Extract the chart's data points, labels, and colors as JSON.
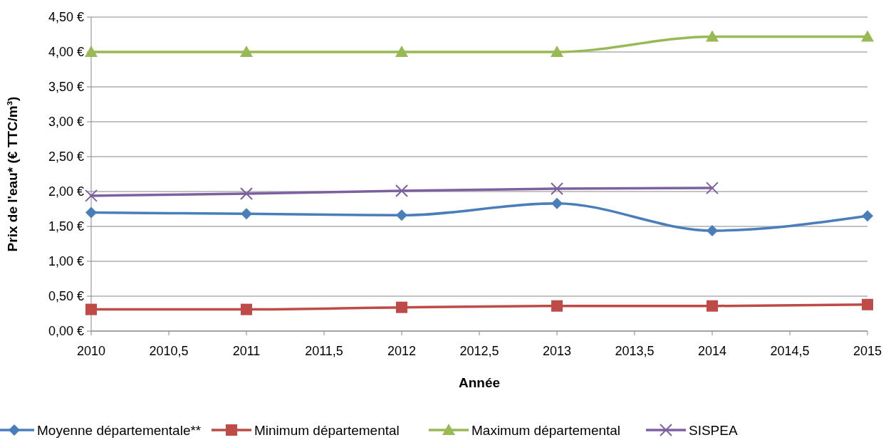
{
  "chart_data": {
    "type": "line",
    "xlabel": "Année",
    "ylabel": "Prix de l'eau* (€ TTC/m³)",
    "x": [
      2010,
      2011,
      2012,
      2013,
      2014,
      2015
    ],
    "xlim": [
      2010,
      2015
    ],
    "xticks": [
      2010,
      {
        "value": 2010.5,
        "label": "2010,5"
      },
      2011,
      {
        "value": 2011.5,
        "label": "2011,5"
      },
      2012,
      {
        "value": 2012.5,
        "label": "2012,5"
      },
      2013,
      {
        "value": 2013.5,
        "label": "2013,5"
      },
      2014,
      {
        "value": 2014.5,
        "label": "2014,5"
      },
      2015
    ],
    "ylim": [
      0,
      4.5
    ],
    "yticks": [
      {
        "value": 0,
        "label": "0,00 €"
      },
      {
        "value": 0.5,
        "label": "0,50 €"
      },
      {
        "value": 1,
        "label": "1,00 €"
      },
      {
        "value": 1.5,
        "label": "1,50 €"
      },
      {
        "value": 2,
        "label": "2,00 €"
      },
      {
        "value": 2.5,
        "label": "2,50 €"
      },
      {
        "value": 3,
        "label": "3,00 €"
      },
      {
        "value": 3.5,
        "label": "3,50 €"
      },
      {
        "value": 4,
        "label": "4,00 €"
      },
      {
        "value": 4.5,
        "label": "4,50 €"
      }
    ],
    "grid": "y",
    "legend": "bottom",
    "series": [
      {
        "name": "Moyenne départementale**",
        "color": "#4a7ebb",
        "marker": "diamond",
        "values": [
          1.7,
          1.68,
          1.66,
          1.83,
          1.44,
          1.65
        ]
      },
      {
        "name": "Minimum départemental",
        "color": "#be4b48",
        "marker": "square",
        "values": [
          0.31,
          0.31,
          0.34,
          0.36,
          0.36,
          0.38
        ]
      },
      {
        "name": "Maximum départemental",
        "color": "#98b954",
        "marker": "triangle",
        "values": [
          4.0,
          4.0,
          4.0,
          4.0,
          4.22,
          4.22
        ]
      },
      {
        "name": "SISPEA",
        "color": "#7d60a0",
        "marker": "cross",
        "values": [
          1.94,
          1.97,
          2.01,
          2.04,
          2.05,
          null
        ]
      }
    ]
  }
}
